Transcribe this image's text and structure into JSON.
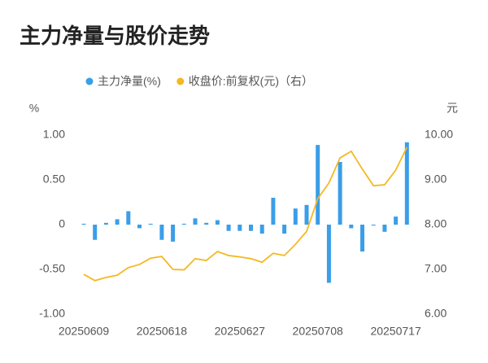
{
  "chart_data": {
    "type": "bar-line",
    "title": "主力净量与股价走势",
    "y_label": "%",
    "y2_label": "元",
    "categories": [
      "20250609",
      null,
      null,
      null,
      null,
      null,
      null,
      "20250618",
      null,
      null,
      null,
      null,
      null,
      null,
      "20250627",
      null,
      null,
      null,
      null,
      null,
      null,
      "20250708",
      null,
      null,
      null,
      null,
      null,
      null,
      "20250717",
      null
    ],
    "series": [
      {
        "name": "主力净量(%)",
        "type": "bar",
        "color": "#3a9ee8",
        "values": [
          0.01,
          -0.17,
          0.02,
          0.06,
          0.15,
          -0.04,
          0.01,
          -0.17,
          -0.19,
          0.01,
          0.07,
          0.02,
          0.05,
          -0.07,
          -0.07,
          -0.07,
          -0.1,
          0.3,
          -0.1,
          0.18,
          0.22,
          0.89,
          -0.65,
          0.7,
          -0.04,
          -0.3,
          -0.01,
          -0.08,
          0.09,
          0.92
        ]
      },
      {
        "name": "收盘价:前复权(元)（右）",
        "type": "line",
        "axis": "y2",
        "color": "#f5b820",
        "values": [
          6.89,
          6.75,
          6.82,
          6.87,
          7.04,
          7.11,
          7.25,
          7.29,
          7.0,
          6.99,
          7.24,
          7.2,
          7.4,
          7.31,
          7.28,
          7.24,
          7.16,
          7.36,
          7.31,
          7.56,
          7.85,
          8.58,
          8.93,
          9.49,
          9.64,
          9.24,
          8.87,
          8.89,
          9.22,
          9.73
        ]
      }
    ],
    "ylim": [
      -1,
      1
    ],
    "yticks": [
      {
        "value": -1,
        "label": "-1.00"
      },
      {
        "value": -0.5,
        "label": "-0.50"
      },
      0,
      {
        "value": 0.5,
        "label": "0.50"
      },
      {
        "value": 1,
        "label": "1.00"
      }
    ],
    "y2lim": [
      6,
      10
    ],
    "y2ticks": [
      {
        "value": 6,
        "label": "6.00"
      },
      {
        "value": 7,
        "label": "7.00"
      },
      {
        "value": 8,
        "label": "8.00"
      },
      {
        "value": 9,
        "label": "9.00"
      },
      {
        "value": 10,
        "label": "10.00"
      }
    ],
    "grid": false
  }
}
